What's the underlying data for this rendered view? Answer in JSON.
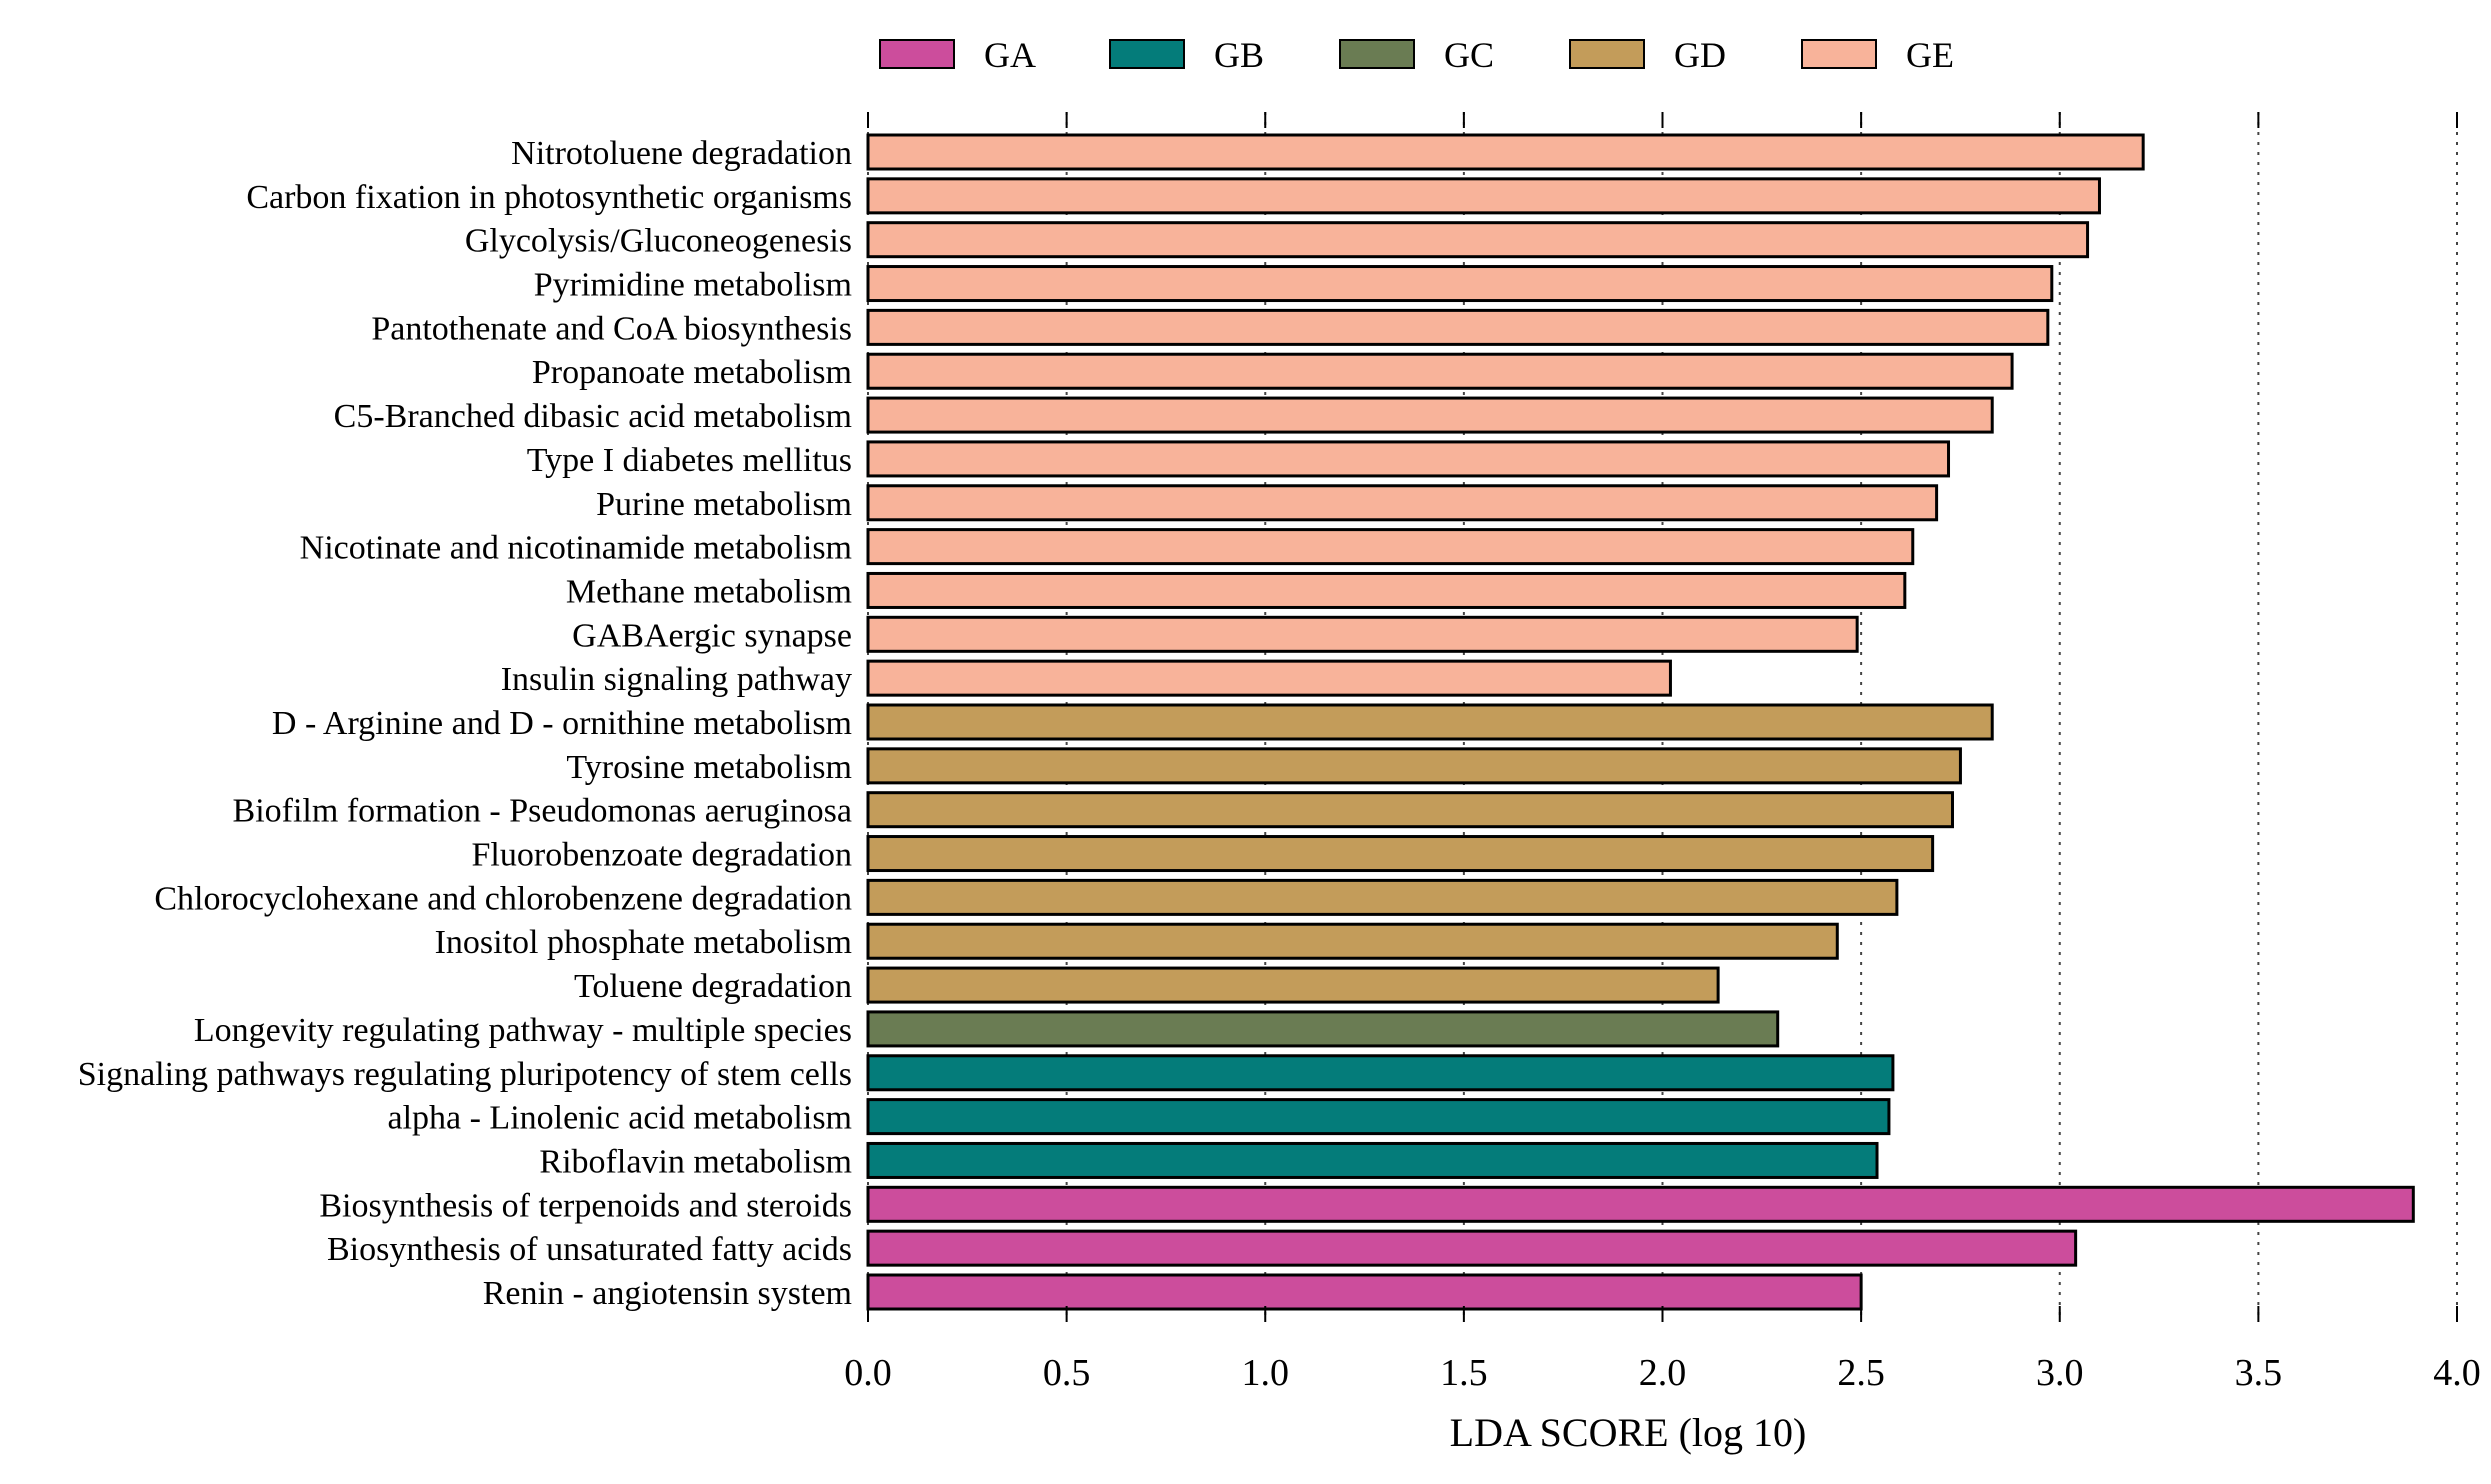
{
  "chart_data": {
    "type": "bar",
    "orientation": "horizontal",
    "xlabel": "LDA SCORE (log 10)",
    "xlim": [
      0,
      4.0
    ],
    "xticks": [
      "0.0",
      "0.5",
      "1.0",
      "1.5",
      "2.0",
      "2.5",
      "3.0",
      "3.5",
      "4.0"
    ],
    "grid": "vertical dotted",
    "legend_position": "top",
    "legend": [
      {
        "name": "GA",
        "color": "#cc4d9c"
      },
      {
        "name": "GB",
        "color": "#047c7a"
      },
      {
        "name": "GC",
        "color": "#6a7c53"
      },
      {
        "name": "GD",
        "color": "#c39c5a"
      },
      {
        "name": "GE",
        "color": "#f8b39a"
      }
    ],
    "bars": [
      {
        "label": "Nitrotoluene degradation",
        "value": 3.21,
        "group": "GE"
      },
      {
        "label": "Carbon fixation in photosynthetic organisms",
        "value": 3.1,
        "group": "GE"
      },
      {
        "label": "Glycolysis/Gluconeogenesis",
        "value": 3.07,
        "group": "GE"
      },
      {
        "label": "Pyrimidine metabolism",
        "value": 2.98,
        "group": "GE"
      },
      {
        "label": "Pantothenate and CoA biosynthesis",
        "value": 2.97,
        "group": "GE"
      },
      {
        "label": "Propanoate metabolism",
        "value": 2.88,
        "group": "GE"
      },
      {
        "label": "C5-Branched dibasic acid metabolism",
        "value": 2.83,
        "group": "GE"
      },
      {
        "label": "Type I diabetes mellitus",
        "value": 2.72,
        "group": "GE"
      },
      {
        "label": "Purine metabolism",
        "value": 2.69,
        "group": "GE"
      },
      {
        "label": "Nicotinate and nicotinamide metabolism",
        "value": 2.63,
        "group": "GE"
      },
      {
        "label": "Methane metabolism",
        "value": 2.61,
        "group": "GE"
      },
      {
        "label": "GABAergic synapse",
        "value": 2.49,
        "group": "GE"
      },
      {
        "label": "Insulin signaling pathway",
        "value": 2.02,
        "group": "GE"
      },
      {
        "label": "D - Arginine and D - ornithine metabolism",
        "value": 2.83,
        "group": "GD"
      },
      {
        "label": "Tyrosine metabolism",
        "value": 2.75,
        "group": "GD"
      },
      {
        "label": "Biofilm formation - Pseudomonas aeruginosa",
        "value": 2.73,
        "group": "GD"
      },
      {
        "label": "Fluorobenzoate degradation",
        "value": 2.68,
        "group": "GD"
      },
      {
        "label": "Chlorocyclohexane and chlorobenzene degradation",
        "value": 2.59,
        "group": "GD"
      },
      {
        "label": "Inositol phosphate metabolism",
        "value": 2.44,
        "group": "GD"
      },
      {
        "label": "Toluene degradation",
        "value": 2.14,
        "group": "GD"
      },
      {
        "label": "Longevity regulating pathway - multiple species",
        "value": 2.29,
        "group": "GC"
      },
      {
        "label": "Signaling pathways regulating pluripotency of stem cells",
        "value": 2.58,
        "group": "GB"
      },
      {
        "label": "alpha - Linolenic acid metabolism",
        "value": 2.57,
        "group": "GB"
      },
      {
        "label": "Riboflavin metabolism",
        "value": 2.54,
        "group": "GB"
      },
      {
        "label": "Biosynthesis of terpenoids and steroids",
        "value": 3.89,
        "group": "GA"
      },
      {
        "label": "Biosynthesis of unsaturated fatty acids",
        "value": 3.04,
        "group": "GA"
      },
      {
        "label": "Renin - angiotensin system",
        "value": 2.5,
        "group": "GA"
      }
    ]
  }
}
